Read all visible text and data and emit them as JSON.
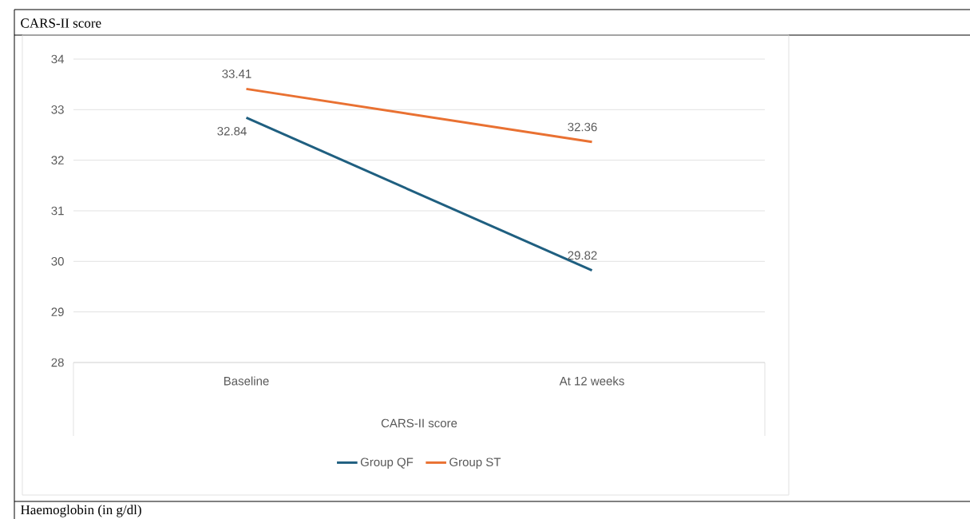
{
  "chart_data": {
    "type": "line",
    "title": "CARS-II score",
    "xlabel": "CARS-II score",
    "categories": [
      "Baseline",
      "At 12 weeks"
    ],
    "series": [
      {
        "name": "Group QF",
        "color": "#1f5f80",
        "values": [
          32.84,
          29.82
        ]
      },
      {
        "name": "Group ST",
        "color": "#e97132",
        "values": [
          33.41,
          32.36
        ]
      }
    ],
    "ylim": [
      28,
      34
    ],
    "yticks": [
      28,
      29,
      30,
      31,
      32,
      33,
      34
    ],
    "grid": "y",
    "legend": "bottom",
    "data_labels": true,
    "marker": "none",
    "line_style": "solid",
    "annotations": [
      "Haemoglobin (in g/dl)"
    ]
  }
}
